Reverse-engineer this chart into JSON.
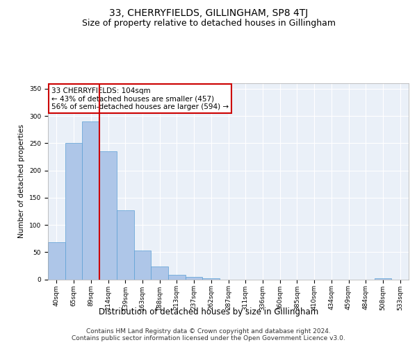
{
  "title": "33, CHERRYFIELDS, GILLINGHAM, SP8 4TJ",
  "subtitle": "Size of property relative to detached houses in Gillingham",
  "xlabel": "Distribution of detached houses by size in Gillingham",
  "ylabel": "Number of detached properties",
  "categories": [
    "40sqm",
    "65sqm",
    "89sqm",
    "114sqm",
    "139sqm",
    "163sqm",
    "188sqm",
    "213sqm",
    "237sqm",
    "262sqm",
    "287sqm",
    "311sqm",
    "336sqm",
    "360sqm",
    "385sqm",
    "410sqm",
    "434sqm",
    "459sqm",
    "484sqm",
    "508sqm",
    "533sqm"
  ],
  "values": [
    68,
    250,
    290,
    235,
    127,
    53,
    23,
    8,
    4,
    2,
    0,
    0,
    0,
    0,
    0,
    0,
    0,
    0,
    0,
    2,
    0
  ],
  "bar_color": "#aec6e8",
  "bar_edgecolor": "#5a9fd4",
  "vline_x": 2.5,
  "vline_color": "#cc0000",
  "annotation_text": "33 CHERRYFIELDS: 104sqm\n← 43% of detached houses are smaller (457)\n56% of semi-detached houses are larger (594) →",
  "annotation_box_color": "#ffffff",
  "annotation_box_edgecolor": "#cc0000",
  "ylim": [
    0,
    360
  ],
  "yticks": [
    0,
    50,
    100,
    150,
    200,
    250,
    300,
    350
  ],
  "background_color": "#eaf0f8",
  "footer_text": "Contains HM Land Registry data © Crown copyright and database right 2024.\nContains public sector information licensed under the Open Government Licence v3.0.",
  "title_fontsize": 10,
  "subtitle_fontsize": 9,
  "xlabel_fontsize": 8.5,
  "ylabel_fontsize": 7.5,
  "tick_fontsize": 6.5,
  "annotation_fontsize": 7.5,
  "footer_fontsize": 6.5
}
